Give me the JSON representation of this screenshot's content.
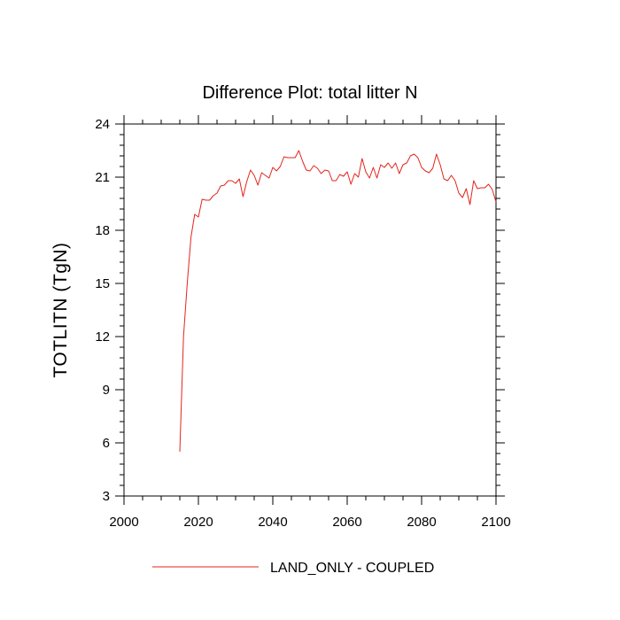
{
  "chart_data": {
    "type": "line",
    "title": "Difference Plot: total litter N",
    "xlabel": "",
    "ylabel": "TOTLITN  (TgN)",
    "xlim": [
      2000,
      2100
    ],
    "ylim": [
      3,
      24
    ],
    "xticks": [
      2000,
      2020,
      2040,
      2060,
      2080,
      2100
    ],
    "yticks": [
      3,
      6,
      9,
      12,
      15,
      18,
      21,
      24
    ],
    "xtick_labels": [
      "2000",
      "2020",
      "2040",
      "2060",
      "2080",
      "2100"
    ],
    "ytick_labels": [
      "3",
      "6",
      "9",
      "12",
      "15",
      "18",
      "21",
      "24"
    ],
    "grid": false,
    "legend_position": "bottom-center",
    "series": [
      {
        "name": "LAND_ONLY - COUPLED",
        "color": "#e3241b",
        "x": [
          2015,
          2016,
          2017,
          2018,
          2019,
          2020,
          2021,
          2022,
          2023,
          2024,
          2025,
          2026,
          2027,
          2028,
          2029,
          2030,
          2031,
          2032,
          2033,
          2034,
          2035,
          2036,
          2037,
          2038,
          2039,
          2040,
          2041,
          2042,
          2043,
          2044,
          2045,
          2046,
          2047,
          2048,
          2049,
          2050,
          2051,
          2052,
          2053,
          2054,
          2055,
          2056,
          2057,
          2058,
          2059,
          2060,
          2061,
          2062,
          2063,
          2064,
          2065,
          2066,
          2067,
          2068,
          2069,
          2070,
          2071,
          2072,
          2073,
          2074,
          2075,
          2076,
          2077,
          2078,
          2079,
          2080,
          2081,
          2082,
          2083,
          2084,
          2085,
          2086,
          2087,
          2088,
          2089,
          2090,
          2091,
          2092,
          2093,
          2094,
          2095,
          2096,
          2097,
          2098,
          2099,
          2100
        ],
        "y": [
          5.5,
          12.0,
          15.0,
          17.6,
          18.9,
          18.75,
          19.75,
          19.7,
          19.7,
          19.95,
          20.1,
          20.5,
          20.55,
          20.8,
          20.8,
          20.65,
          20.9,
          19.9,
          20.75,
          21.4,
          21.1,
          20.55,
          21.25,
          21.1,
          20.95,
          21.55,
          21.35,
          21.6,
          22.15,
          22.1,
          22.1,
          22.1,
          22.5,
          21.9,
          21.4,
          21.35,
          21.65,
          21.5,
          21.2,
          21.4,
          21.35,
          20.8,
          20.8,
          21.15,
          21.05,
          21.3,
          20.6,
          21.2,
          21.0,
          22.05,
          21.3,
          20.95,
          21.55,
          20.95,
          21.7,
          21.55,
          21.8,
          21.5,
          21.8,
          21.2,
          21.7,
          21.8,
          22.2,
          22.3,
          22.1,
          21.55,
          21.35,
          21.25,
          21.5,
          22.3,
          21.7,
          20.9,
          20.8,
          21.1,
          20.8,
          20.1,
          19.85,
          20.35,
          19.45,
          20.8,
          20.35,
          20.4,
          20.4,
          20.6,
          20.3,
          19.6
        ]
      }
    ]
  }
}
